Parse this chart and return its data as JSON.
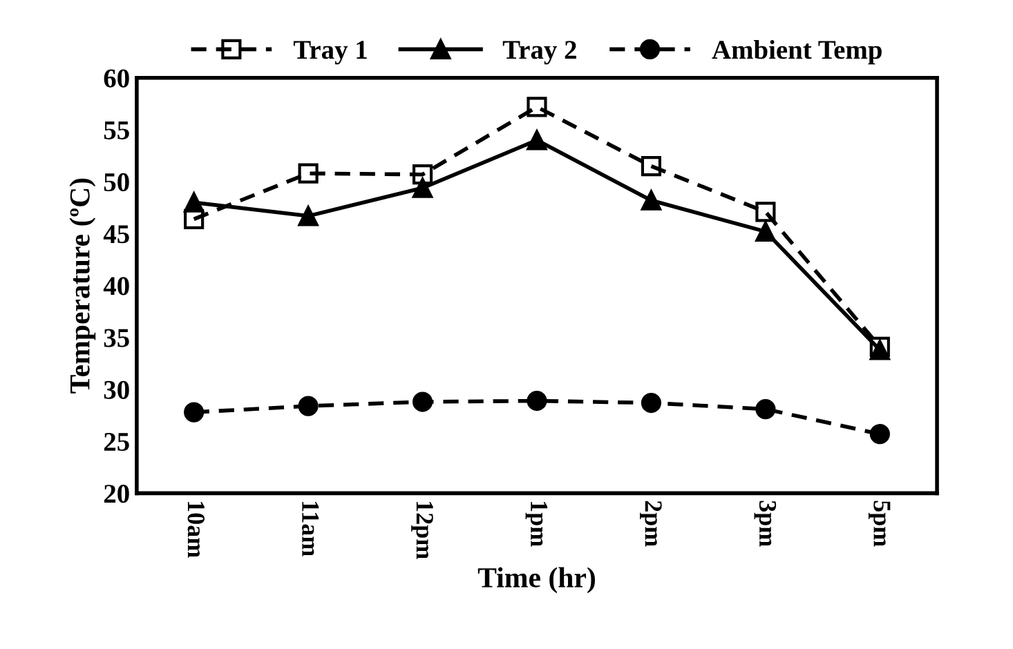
{
  "chart_data": {
    "type": "line",
    "xlabel": "Time (hr)",
    "ylabel": "Temperature (ºC)",
    "categories": [
      "10am",
      "11am",
      "12pm",
      "1pm",
      "2pm",
      "3pm",
      "5pm"
    ],
    "series": [
      {
        "name": "Tray 1",
        "color": "#000000",
        "marker": "square",
        "line_style": "dashed",
        "values": [
          46.4,
          50.8,
          50.7,
          57.2,
          51.5,
          47.1,
          34.1
        ]
      },
      {
        "name": "Tray 2",
        "color": "#000000",
        "marker": "triangle",
        "line_style": "solid",
        "values": [
          48.0,
          46.7,
          49.4,
          54.0,
          48.2,
          45.2,
          33.8
        ]
      },
      {
        "name": "Ambient Temp",
        "color": "#000000",
        "marker": "circle",
        "line_style": "dashed",
        "values": [
          27.8,
          28.4,
          28.8,
          28.9,
          28.7,
          28.1,
          25.7
        ]
      }
    ],
    "ylim": [
      20,
      60
    ],
    "yticks": [
      20,
      25,
      30,
      35,
      40,
      45,
      50,
      55,
      60
    ],
    "grid": false,
    "legend": "top"
  }
}
